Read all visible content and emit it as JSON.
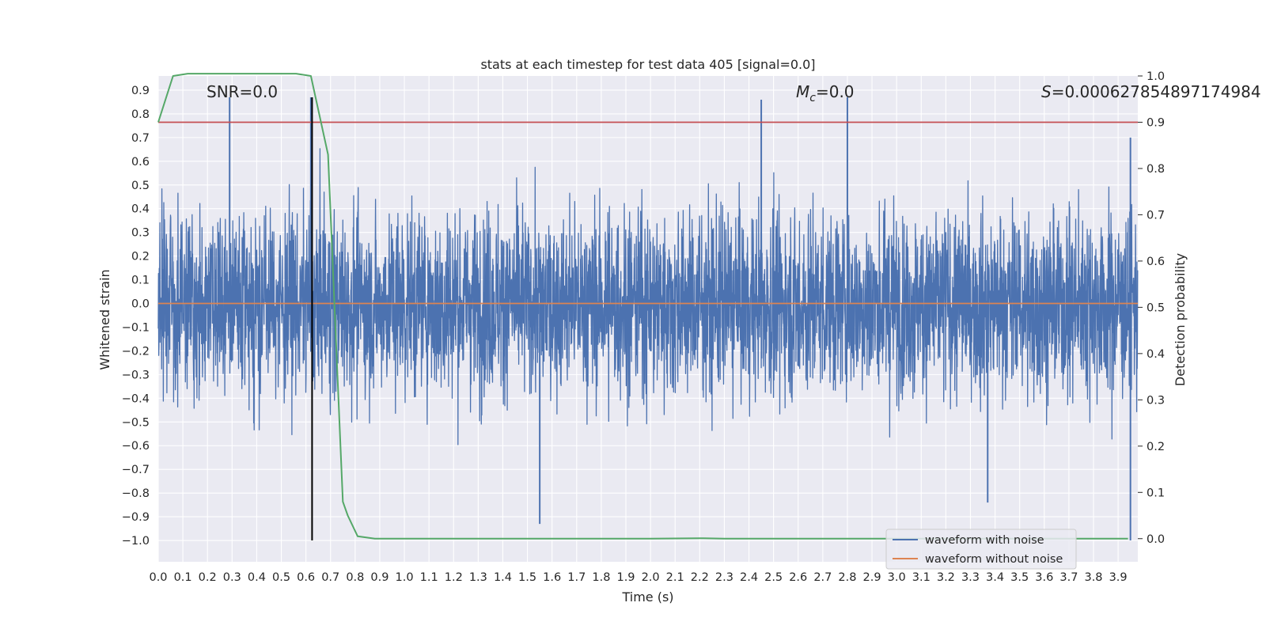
{
  "chart_data": {
    "type": "line",
    "title": "stats at each timestep for test data 405 [signal=0.0]",
    "xlabel": "Time (s)",
    "ylabel": "Whitened strain",
    "y2label": "Detection probability",
    "xlim": [
      0.0,
      3.98
    ],
    "ylim": [
      -1.09,
      0.96
    ],
    "y2lim": [
      -0.05,
      1.0
    ],
    "xticks": [
      "0.0",
      "0.1",
      "0.2",
      "0.3",
      "0.4",
      "0.5",
      "0.6",
      "0.7",
      "0.8",
      "0.9",
      "1.0",
      "1.1",
      "1.2",
      "1.3",
      "1.4",
      "1.5",
      "1.6",
      "1.7",
      "1.8",
      "1.9",
      "2.0",
      "2.1",
      "2.2",
      "2.3",
      "2.4",
      "2.5",
      "2.6",
      "2.7",
      "2.8",
      "2.9",
      "3.0",
      "3.1",
      "3.2",
      "3.3",
      "3.4",
      "3.5",
      "3.6",
      "3.7",
      "3.8",
      "3.9"
    ],
    "yticks": [
      "0.9",
      "0.8",
      "0.7",
      "0.6",
      "0.5",
      "0.4",
      "0.3",
      "0.2",
      "0.1",
      "0.0",
      "−0.1",
      "−0.2",
      "−0.3",
      "−0.4",
      "−0.5",
      "−0.6",
      "−0.7",
      "−0.8",
      "−0.9",
      "−1.0"
    ],
    "y2ticks": [
      "1.0",
      "0.9",
      "0.8",
      "0.7",
      "0.6",
      "0.5",
      "0.4",
      "0.3",
      "0.2",
      "0.1",
      "0.0"
    ],
    "annotations": {
      "snr": "SNR=0.0",
      "mc_symbol": "M",
      "mc_sub": "c",
      "mc_value": "=0.0",
      "s_symbol": "S",
      "s_value": "=0.000627854897174984"
    },
    "legend": {
      "position": "lower right",
      "entries": [
        "waveform with noise",
        "waveform without noise"
      ]
    },
    "series": [
      {
        "name": "waveform with noise",
        "axis": "left",
        "color": "#4c72b0",
        "kind": "noise",
        "sample_rate_hz": 1024,
        "approx_range": [
          -1.0,
          0.87
        ],
        "notable_peaks": [
          {
            "x": 0.29,
            "y": 0.87
          },
          {
            "x": 0.62,
            "y": 0.87
          },
          {
            "x": 1.55,
            "y": -0.93
          },
          {
            "x": 2.45,
            "y": 0.86
          },
          {
            "x": 2.8,
            "y": 0.87
          },
          {
            "x": 3.37,
            "y": -0.84
          },
          {
            "x": 3.95,
            "y": -1.0
          },
          {
            "x": 3.95,
            "y": 0.7
          }
        ]
      },
      {
        "name": "waveform without noise",
        "axis": "left",
        "color": "#dd8452",
        "x": [
          0.0,
          3.98
        ],
        "y": [
          0.0,
          0.0
        ]
      },
      {
        "name": "detection probability",
        "axis": "right",
        "color": "#55a868",
        "x": [
          0.0,
          0.06,
          0.12,
          0.2,
          0.3,
          0.4,
          0.5,
          0.56,
          0.62,
          0.69,
          0.75,
          0.77,
          0.81,
          0.88,
          1.0,
          2.0,
          2.2,
          2.3,
          3.0,
          3.94
        ],
        "y": [
          0.9,
          1.0,
          1.005,
          1.005,
          1.005,
          1.005,
          1.005,
          1.005,
          1.0,
          0.83,
          0.08,
          0.05,
          0.005,
          0.0,
          0.0,
          0.0,
          0.001,
          0.0,
          0.0,
          0.0
        ]
      }
    ],
    "hlines": [
      {
        "name": "threshold",
        "axis": "right",
        "y": 0.9,
        "color": "#c44e52"
      }
    ],
    "vlines": [
      {
        "name": "marker",
        "x": 0.625,
        "y_from": -1.0,
        "y_to": 0.87,
        "color": "#000000"
      }
    ],
    "grid": true
  }
}
